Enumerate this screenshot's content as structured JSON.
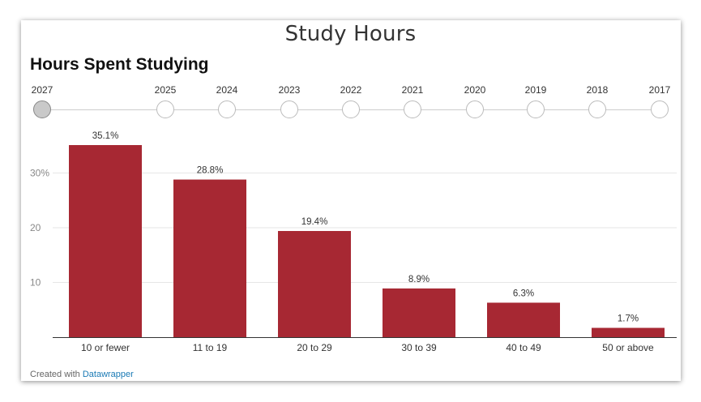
{
  "page_title": "Study Hours",
  "footer": {
    "prefix": "Created with",
    "link": "Datawrapper"
  },
  "timeline": {
    "years": [
      "2027",
      "2025",
      "2024",
      "2023",
      "2022",
      "2021",
      "2020",
      "2019",
      "2018",
      "2017"
    ],
    "selected": "2027"
  },
  "colors": {
    "bar": "#a72833",
    "grid": "#e6e6e6",
    "axis": "#333333"
  },
  "chart_data": {
    "type": "bar",
    "title": "Hours Spent Studying",
    "xlabel": "",
    "ylabel": "",
    "categories": [
      "10 or fewer",
      "11 to 19",
      "20 to 29",
      "30 to 39",
      "40 to 49",
      "50 or above"
    ],
    "values": [
      35.1,
      28.8,
      19.4,
      8.9,
      6.3,
      1.7
    ],
    "value_labels": [
      "35.1%",
      "28.8%",
      "19.4%",
      "8.9%",
      "6.3%",
      "1.7%"
    ],
    "yticks": [
      10,
      20,
      30
    ],
    "ytick_labels": [
      "10",
      "20",
      "30%"
    ],
    "ylim": [
      0,
      35.1
    ],
    "grid": true,
    "legend": false
  }
}
